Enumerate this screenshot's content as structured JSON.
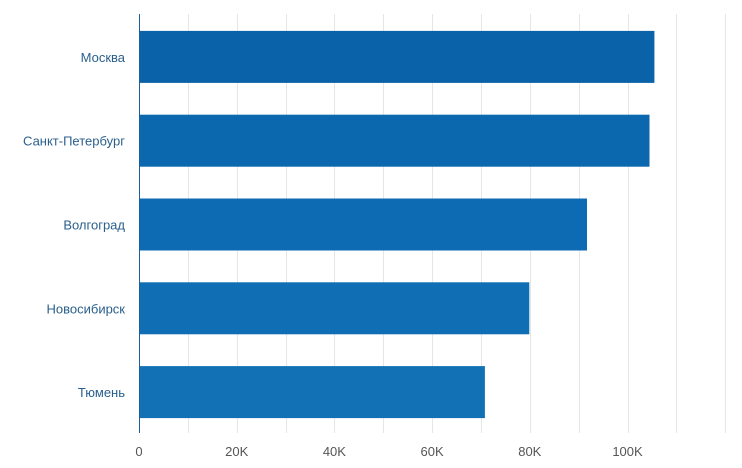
{
  "chart_data": {
    "type": "bar",
    "orientation": "horizontal",
    "categories": [
      "Москва",
      "Санкт-Петербург",
      "Волгоград",
      "Новосибирск",
      "Тюмень"
    ],
    "values": [
      105500,
      104500,
      91700,
      79900,
      70800
    ],
    "xlim": [
      0,
      120000
    ],
    "x_ticks": [
      0,
      20000,
      40000,
      60000,
      80000,
      100000
    ],
    "x_tick_labels": [
      "0",
      "20K",
      "40K",
      "60K",
      "80K",
      "100K"
    ],
    "grid": true,
    "legend": "none",
    "title": "",
    "xlabel": "",
    "ylabel": "",
    "colors": {
      "bars": [
        "#0a63a9",
        "#0b67ae",
        "#0d6bb3",
        "#0f6eb4",
        "#1271b5"
      ],
      "category_label": "#2a5f8c",
      "tick_label": "#555555",
      "grid": "#e6e6e6",
      "axis": "#1f5f99"
    }
  }
}
